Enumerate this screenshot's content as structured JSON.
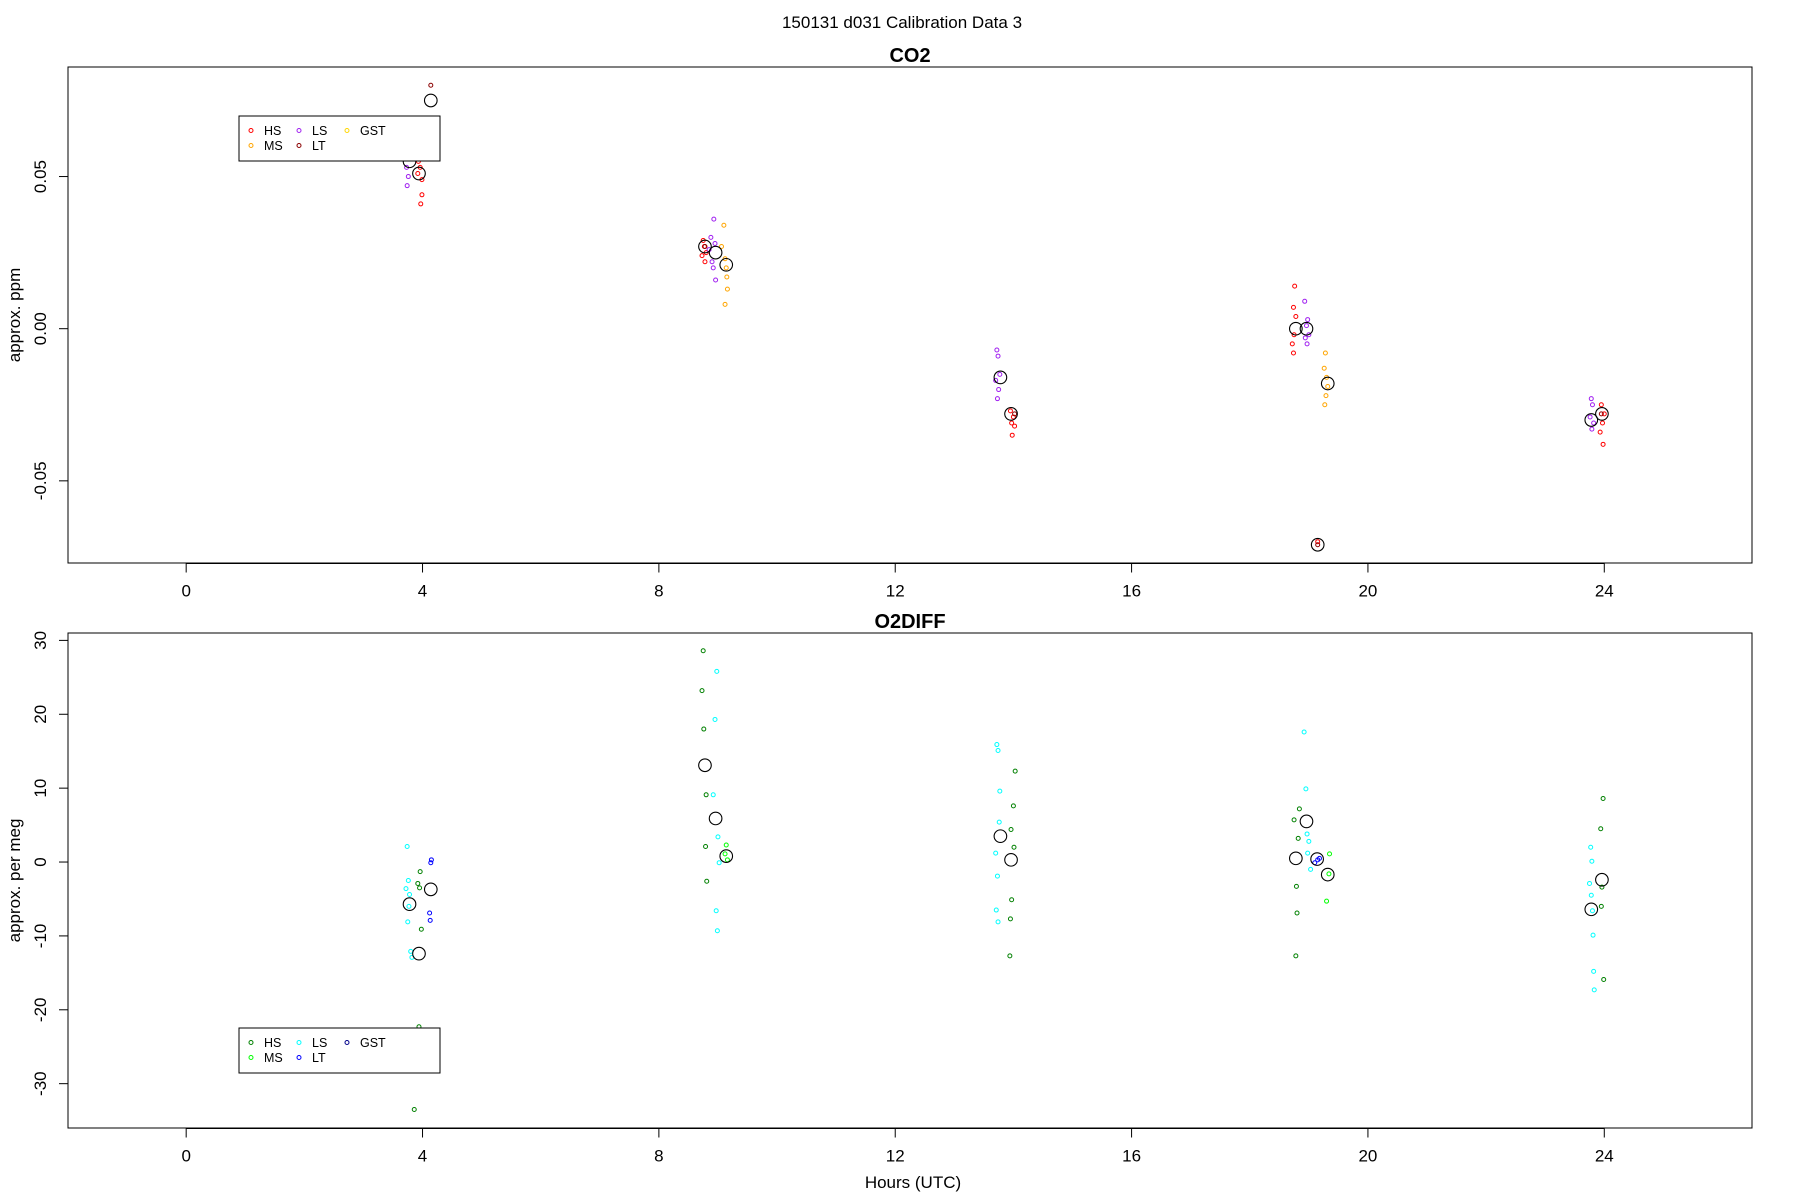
{
  "suptitle": "150131   d031   Calibration Data 3",
  "chart_data": [
    {
      "type": "scatter",
      "title": "CO2",
      "xlabel": "",
      "ylabel": "approx. ppm",
      "xlim": [
        -2,
        26.5
      ],
      "ylim": [
        -0.077,
        0.086
      ],
      "xticks": [
        0,
        4,
        8,
        12,
        16,
        20,
        24
      ],
      "yticks": [
        -0.05,
        0.0,
        0.05
      ],
      "ytick_labels": [
        "-0.05",
        "0.00",
        "0.05"
      ],
      "legend": {
        "position": "top-left",
        "entries": [
          "HS",
          "MS",
          "LS",
          "LT",
          "GST"
        ]
      },
      "series": [
        {
          "name": "HS",
          "color": "#ff0000",
          "points": [
            [
              3.93,
              0.055
            ],
            [
              3.96,
              0.053
            ],
            [
              3.99,
              0.049
            ],
            [
              3.97,
              0.041
            ],
            [
              3.99,
              0.044
            ],
            [
              3.92,
              0.051
            ],
            [
              8.75,
              0.029
            ],
            [
              8.77,
              0.027
            ],
            [
              8.8,
              0.025
            ],
            [
              8.73,
              0.024
            ],
            [
              8.78,
              0.022
            ],
            [
              13.95,
              -0.027
            ],
            [
              14.0,
              -0.029
            ],
            [
              13.97,
              -0.031
            ],
            [
              14.02,
              -0.032
            ],
            [
              13.98,
              -0.035
            ],
            [
              18.76,
              0.014
            ],
            [
              18.74,
              0.007
            ],
            [
              18.78,
              0.004
            ],
            [
              18.75,
              -0.002
            ],
            [
              18.72,
              -0.005
            ],
            [
              18.74,
              -0.008
            ],
            [
              19.15,
              -0.07
            ],
            [
              23.95,
              -0.025
            ],
            [
              24.0,
              -0.028
            ],
            [
              23.97,
              -0.031
            ],
            [
              23.93,
              -0.034
            ],
            [
              23.98,
              -0.038
            ]
          ]
        },
        {
          "name": "MS",
          "color": "#ffa500",
          "points": [
            [
              9.1,
              0.034
            ],
            [
              9.06,
              0.027
            ],
            [
              9.12,
              0.023
            ],
            [
              9.14,
              0.02
            ],
            [
              9.15,
              0.017
            ],
            [
              9.16,
              0.013
            ],
            [
              9.12,
              0.008
            ],
            [
              19.28,
              -0.008
            ],
            [
              19.26,
              -0.013
            ],
            [
              19.3,
              -0.016
            ],
            [
              19.32,
              -0.019
            ],
            [
              19.29,
              -0.022
            ],
            [
              19.27,
              -0.025
            ]
          ]
        },
        {
          "name": "LS",
          "color": "#a020f0",
          "points": [
            [
              3.71,
              0.057
            ],
            [
              3.73,
              0.053
            ],
            [
              3.76,
              0.05
            ],
            [
              3.74,
              0.047
            ],
            [
              8.93,
              0.036
            ],
            [
              8.88,
              0.03
            ],
            [
              8.95,
              0.028
            ],
            [
              8.85,
              0.026
            ],
            [
              8.9,
              0.022
            ],
            [
              8.92,
              0.02
            ],
            [
              8.96,
              0.016
            ],
            [
              13.72,
              -0.007
            ],
            [
              13.74,
              -0.009
            ],
            [
              13.77,
              -0.015
            ],
            [
              13.7,
              -0.017
            ],
            [
              13.75,
              -0.02
            ],
            [
              13.73,
              -0.023
            ],
            [
              18.93,
              0.009
            ],
            [
              18.98,
              0.003
            ],
            [
              18.96,
              0.001
            ],
            [
              19.0,
              -0.002
            ],
            [
              18.94,
              -0.003
            ],
            [
              18.97,
              -0.005
            ],
            [
              23.78,
              -0.023
            ],
            [
              23.8,
              -0.025
            ],
            [
              23.76,
              -0.029
            ],
            [
              23.82,
              -0.031
            ],
            [
              23.79,
              -0.033
            ]
          ]
        },
        {
          "name": "LT",
          "color": "#8b0000",
          "points": [
            [
              4.14,
              0.08
            ],
            [
              8.78,
              0.027
            ],
            [
              14.02,
              -0.028
            ],
            [
              19.15,
              -0.071
            ],
            [
              23.95,
              -0.028
            ]
          ]
        },
        {
          "name": "GST",
          "color": "#ffd700",
          "points": []
        },
        {
          "name": "",
          "color": "#000000",
          "marker": "large-open-circle",
          "points": [
            [
              3.78,
              0.055
            ],
            [
              3.94,
              0.051
            ],
            [
              4.14,
              0.075
            ],
            [
              8.78,
              0.027
            ],
            [
              8.96,
              0.025
            ],
            [
              9.14,
              0.021
            ],
            [
              13.78,
              -0.016
            ],
            [
              13.96,
              -0.028
            ],
            [
              18.78,
              0.0
            ],
            [
              18.96,
              0.0
            ],
            [
              19.32,
              -0.018
            ],
            [
              19.15,
              -0.071
            ],
            [
              23.78,
              -0.03
            ],
            [
              23.96,
              -0.028
            ]
          ]
        }
      ]
    },
    {
      "type": "scatter",
      "title": "O2DIFF",
      "xlabel": "Hours (UTC)",
      "ylabel": "approx. per meg",
      "xlim": [
        -2,
        26.5
      ],
      "ylim": [
        -36,
        31
      ],
      "xticks": [
        0,
        4,
        8,
        12,
        16,
        20,
        24
      ],
      "yticks": [
        -30,
        -20,
        -10,
        0,
        10,
        20,
        30
      ],
      "ytick_labels": [
        "-30",
        "-20",
        "-10",
        "0",
        "10",
        "20",
        "30"
      ],
      "legend": {
        "position": "bottom-left",
        "entries": [
          "HS",
          "MS",
          "LS",
          "LT",
          "GST"
        ]
      },
      "series": [
        {
          "name": "HS",
          "color": "#008000",
          "points": [
            [
              3.96,
              -1.3
            ],
            [
              3.92,
              -2.9
            ],
            [
              3.95,
              -3.5
            ],
            [
              3.98,
              -9.1
            ],
            [
              3.94,
              -22.3
            ],
            [
              3.86,
              -33.5
            ],
            [
              8.75,
              28.6
            ],
            [
              8.73,
              23.2
            ],
            [
              8.76,
              18.0
            ],
            [
              8.8,
              9.1
            ],
            [
              8.79,
              2.1
            ],
            [
              8.81,
              -2.6
            ],
            [
              14.03,
              12.3
            ],
            [
              14.0,
              7.6
            ],
            [
              13.96,
              4.4
            ],
            [
              14.01,
              2.0
            ],
            [
              13.97,
              -5.1
            ],
            [
              13.95,
              -7.7
            ],
            [
              13.94,
              -12.7
            ],
            [
              18.84,
              7.2
            ],
            [
              18.75,
              5.7
            ],
            [
              18.82,
              3.2
            ],
            [
              18.79,
              -3.3
            ],
            [
              18.8,
              -6.9
            ],
            [
              18.78,
              -12.7
            ],
            [
              23.98,
              8.6
            ],
            [
              23.94,
              4.5
            ],
            [
              23.96,
              -3.4
            ],
            [
              23.95,
              -6.0
            ],
            [
              23.99,
              -15.9
            ]
          ]
        },
        {
          "name": "MS",
          "color": "#00ff00",
          "points": [
            [
              9.14,
              2.3
            ],
            [
              9.12,
              1.1
            ],
            [
              9.16,
              0.3
            ],
            [
              19.35,
              1.1
            ],
            [
              19.34,
              -1.6
            ],
            [
              19.3,
              -5.3
            ]
          ]
        },
        {
          "name": "LS",
          "color": "#00ffff",
          "points": [
            [
              3.74,
              2.1
            ],
            [
              3.76,
              -2.5
            ],
            [
              3.72,
              -3.6
            ],
            [
              3.78,
              -4.4
            ],
            [
              3.77,
              -6.0
            ],
            [
              3.75,
              -8.1
            ],
            [
              3.8,
              -12.1
            ],
            [
              3.82,
              -12.9
            ],
            [
              8.98,
              25.8
            ],
            [
              8.95,
              19.3
            ],
            [
              8.92,
              9.1
            ],
            [
              9.0,
              3.4
            ],
            [
              9.02,
              -0.1
            ],
            [
              8.97,
              -6.6
            ],
            [
              8.99,
              -9.3
            ],
            [
              13.72,
              15.9
            ],
            [
              13.74,
              15.1
            ],
            [
              13.77,
              9.6
            ],
            [
              13.76,
              5.4
            ],
            [
              13.7,
              1.2
            ],
            [
              13.73,
              -1.9
            ],
            [
              13.71,
              -6.5
            ],
            [
              13.74,
              -8.1
            ],
            [
              18.92,
              17.6
            ],
            [
              18.95,
              9.9
            ],
            [
              18.97,
              3.8
            ],
            [
              19.0,
              2.8
            ],
            [
              18.98,
              1.2
            ],
            [
              19.03,
              -1.0
            ],
            [
              23.77,
              2.0
            ],
            [
              23.79,
              0.1
            ],
            [
              23.75,
              -2.9
            ],
            [
              23.78,
              -4.5
            ],
            [
              23.8,
              -6.6
            ],
            [
              23.81,
              -9.9
            ],
            [
              23.82,
              -14.8
            ],
            [
              23.83,
              -17.3
            ]
          ]
        },
        {
          "name": "LT",
          "color": "#0000ff",
          "points": [
            [
              4.15,
              0.3
            ],
            [
              4.14,
              -0.1
            ],
            [
              4.12,
              -6.9
            ],
            [
              4.13,
              -7.9
            ],
            [
              19.15,
              0.3
            ],
            [
              19.1,
              -0.1
            ],
            [
              19.18,
              0.5
            ]
          ]
        },
        {
          "name": "GST",
          "color": "#00008b",
          "points": []
        },
        {
          "name": "",
          "color": "#000000",
          "marker": "large-open-circle",
          "points": [
            [
              3.78,
              -5.7
            ],
            [
              3.94,
              -12.4
            ],
            [
              4.14,
              -3.7
            ],
            [
              8.78,
              13.1
            ],
            [
              8.96,
              5.9
            ],
            [
              9.14,
              0.8
            ],
            [
              13.78,
              3.5
            ],
            [
              13.96,
              0.3
            ],
            [
              18.78,
              0.5
            ],
            [
              18.96,
              5.5
            ],
            [
              19.14,
              0.4
            ],
            [
              19.32,
              -1.7
            ],
            [
              23.78,
              -6.4
            ],
            [
              23.96,
              -2.4
            ]
          ]
        }
      ]
    }
  ]
}
